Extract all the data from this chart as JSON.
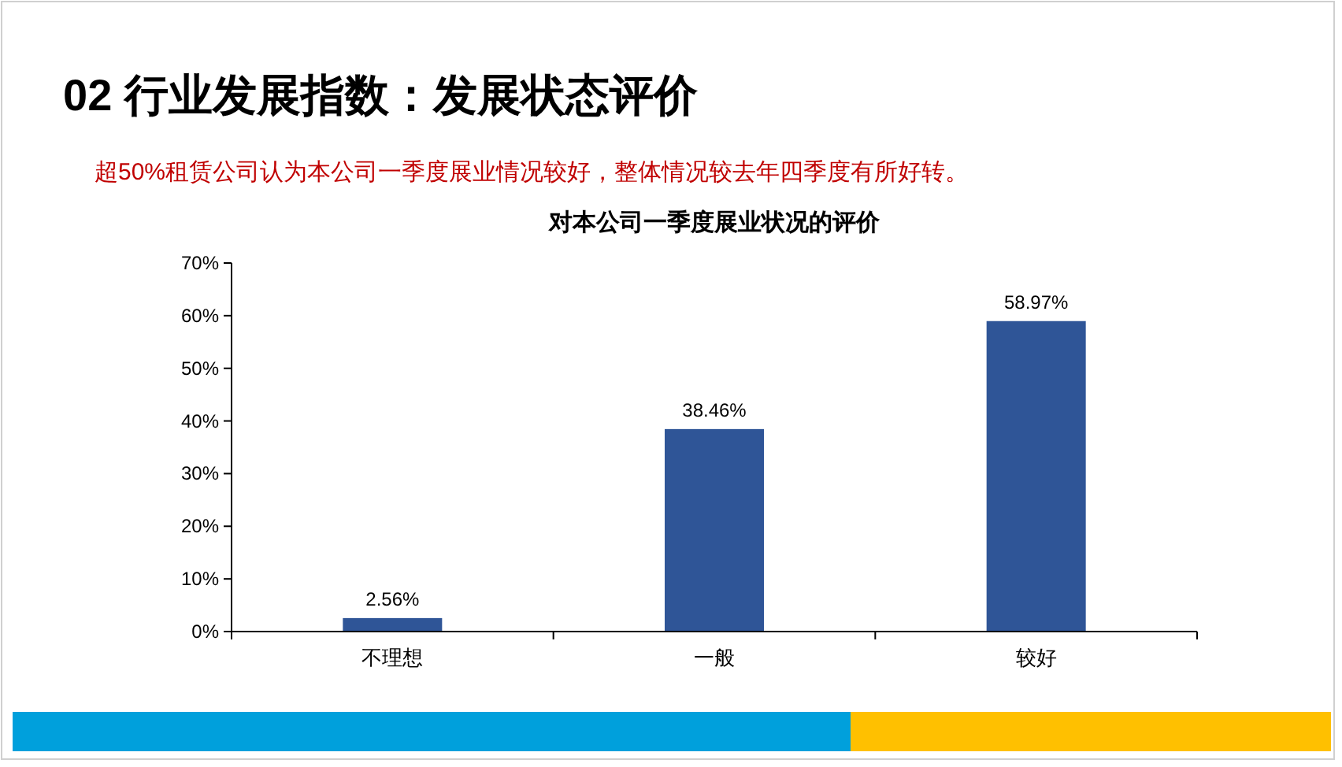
{
  "chart_data": {
    "type": "bar",
    "title": "对本公司一季度展业状况的评价",
    "annotations": [
      "02 行业发展指数：发展状态评价",
      "超50%租赁公司认为本公司一季度展业情况较好，整体情况较去年四季度有所好转。"
    ],
    "categories": [
      "不理想",
      "一般",
      "较好"
    ],
    "values": [
      2.56,
      38.46,
      58.97
    ],
    "value_labels": [
      "2.56%",
      "38.46%",
      "58.97%"
    ],
    "color": "#2f5597",
    "ylim": [
      0,
      70
    ],
    "yticks": [
      {
        "value": 0,
        "label": "0%"
      },
      {
        "value": 10,
        "label": "10%"
      },
      {
        "value": 20,
        "label": "20%"
      },
      {
        "value": 30,
        "label": "30%"
      },
      {
        "value": 40,
        "label": "40%"
      },
      {
        "value": 50,
        "label": "50%"
      },
      {
        "value": 60,
        "label": "60%"
      },
      {
        "value": 70,
        "label": "70%"
      }
    ],
    "grid": false
  }
}
